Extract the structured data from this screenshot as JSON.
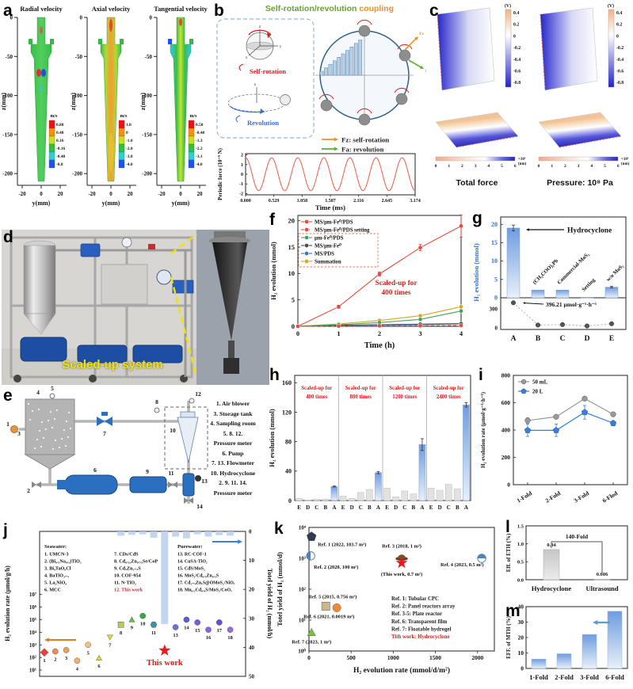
{
  "panel_labels": {
    "a": "a",
    "b": "b",
    "c": "c",
    "d": "d",
    "e": "e",
    "f": "f",
    "g": "g",
    "h": "h",
    "i": "i",
    "j": "j",
    "k": "k",
    "l": "l",
    "m": "m"
  },
  "panel_b": {
    "title_parts": [
      {
        "text": "Self-rotation/revolution ",
        "color": "#6aa02e"
      },
      {
        "text": "coupling",
        "color": "#e8951e"
      }
    ],
    "self_rotation_label": "Self-rotation",
    "revolution_label": "Revolution",
    "fz_label": "Fz: self-rotation",
    "fa_label": "Fa: revolution",
    "fz_color": "#f09020",
    "fa_color": "#56b32a"
  },
  "panel_c": {
    "cb_unit": "(V)",
    "cb_ticks": [
      "0.4",
      "0.2",
      "0",
      "-0.2",
      "-0.4",
      "-0.6",
      "-0.8"
    ],
    "scale_ticks": [
      "0",
      "1",
      "2",
      "3",
      "4",
      "5",
      "6"
    ],
    "scale_unit": "×10³",
    "scale_unit2": "(nm)",
    "captions": [
      "Total force",
      "Pressure: 10⁸ Pa"
    ]
  },
  "panel_d": {
    "caption": "Scaled-up system"
  },
  "panel_e": {
    "legend": [
      "1. Air blower",
      "3. Storage tank",
      "4. Sampling room",
      "5. 8. 12.",
      "Pressure meter",
      "6. Pump",
      "7. 13. Flowmeter",
      "10. Hydrocyclone",
      "2. 9. 11. 14.",
      "Pressure meter"
    ],
    "numbers": [
      "1",
      "2",
      "3",
      "4",
      "5",
      "6",
      "7",
      "8",
      "9",
      "10",
      "11",
      "12",
      "13",
      "14"
    ]
  },
  "chart_data": [
    {
      "panel": "a",
      "type": "heatmap",
      "xlabel": "y(mm)",
      "ylabel": "z(mm)",
      "xticks": [
        "-20",
        "0",
        "20"
      ],
      "yticks": [
        "0",
        "-50",
        "-100",
        "-150",
        "-200"
      ],
      "cb_colors": [
        "#f01010",
        "#f89010",
        "#c8e020",
        "#30c040",
        "#30d0d0",
        "#2050f0"
      ],
      "subplots": [
        {
          "title": "Radial velocity",
          "colorbar_unit": "m/s",
          "colorbar_ticks": [
            "0.80",
            "0.48",
            "0.16",
            "-0.16",
            "-0.48",
            "-0.8"
          ]
        },
        {
          "title": "Axial velocity",
          "colorbar_unit": "m/s",
          "colorbar_ticks": [
            "1.0",
            "0",
            "-1.0",
            "-2.0",
            "-3.0",
            "-4.0"
          ]
        },
        {
          "title": "Tangential velocity",
          "colorbar_unit": "m/s",
          "colorbar_ticks": [
            "0.50",
            "-0.40",
            "-1.3",
            "-2.2",
            "-3.1",
            "-4.0"
          ]
        }
      ]
    },
    {
      "panel": "b",
      "type": "line",
      "xlabel": "Time (ms)",
      "ylabel": "Periodic force (10⁻⁹ N)",
      "xticks": [
        "0.000",
        "0.529",
        "1.058",
        "1.587",
        "2.116",
        "2.645",
        "3.174"
      ],
      "yticks": [
        -2,
        -1,
        0,
        1,
        2
      ],
      "x_range": [
        0,
        3.174
      ],
      "amplitude": 1.7,
      "period_ms": 0.4883,
      "color": "#f05a4a"
    },
    {
      "panel": "f",
      "type": "line",
      "xlabel": "Time (h)",
      "ylabel": "H₂ evolution (mmol)",
      "x": [
        0,
        1,
        2,
        3,
        4
      ],
      "ylim": [
        0,
        21
      ],
      "yticks": [
        0,
        5,
        10,
        15,
        20
      ],
      "annotation": {
        "text_lines": [
          "Scaled-up for",
          "400 times"
        ],
        "color": "#e8191c"
      },
      "series": [
        {
          "name": "MS/μm-Fe⁰/PDS",
          "color": "#e84a3c",
          "dash": false,
          "values": [
            0,
            3.7,
            9.9,
            14.9,
            19.0
          ],
          "errors": [
            0,
            0.3,
            0.4,
            0.6,
            2.1
          ]
        },
        {
          "name": "MS/μm-Fe⁰/PDS setting",
          "color": "#e84a3c",
          "dash": true,
          "values": [
            0,
            0.05,
            0.1,
            0.1,
            0.15
          ]
        },
        {
          "name": "μm-Fe⁰/PDS",
          "color": "#44a05c",
          "dash": false,
          "values": [
            0,
            0.3,
            0.7,
            1.3,
            2.9
          ]
        },
        {
          "name": "MS/μm-Fe⁰",
          "color": "#4d4d4d",
          "dash": false,
          "values": [
            0,
            0.2,
            0.3,
            0.4,
            0.5
          ]
        },
        {
          "name": "MS/PDS",
          "color": "#3b74c9",
          "dash": false,
          "values": [
            0,
            0.15,
            0.25,
            0.3,
            0.45
          ]
        },
        {
          "name": "Summation",
          "color": "#d9a520",
          "dash": false,
          "values": [
            0,
            0.45,
            1.1,
            2.0,
            3.7
          ]
        }
      ]
    },
    {
      "panel": "g",
      "type": "bar+scatter",
      "ylabel": "H₂ evolution (mmol)",
      "ylabel_color": "#2f6fd0",
      "categories": [
        "A",
        "B",
        "C",
        "D",
        "E"
      ],
      "bar_values": [
        19,
        2.1,
        2.1,
        0.15,
        2.9
      ],
      "bar_errors": [
        0.8,
        0,
        0,
        0,
        0.2
      ],
      "yticks": [
        0,
        5,
        10,
        15,
        20
      ],
      "bar_labels": [
        "Hydrocyclone",
        "(CH₃COO)₂Pb",
        "Commercial-MoS₂",
        "Setting",
        "w/o MoS₂"
      ],
      "dot_values": [
        396.21,
        45,
        52,
        30,
        65
      ],
      "dot_yticks": [
        "300",
        "0"
      ],
      "dot_annotation": "396.21 μmol·g⁻¹·h⁻¹"
    },
    {
      "panel": "h",
      "type": "bar",
      "ylabel": "H₂ evolution (mmol)",
      "yticks": [
        0,
        40,
        80,
        120,
        160
      ],
      "ylim": [
        0,
        170
      ],
      "categories": [
        "E",
        "D",
        "C",
        "B",
        "A"
      ],
      "groups": [
        {
          "label_lines": [
            "Scaled-up for",
            "400 times"
          ],
          "values": [
            3,
            0.8,
            2,
            2,
            19
          ]
        },
        {
          "label_lines": [
            "Scaled-up for",
            "800 times"
          ],
          "values": [
            6,
            3,
            11,
            15,
            38
          ]
        },
        {
          "label_lines": [
            "Scaled-up for",
            "1200 times"
          ],
          "values": [
            17,
            5,
            13,
            9,
            76
          ]
        },
        {
          "label_lines": [
            "Scaled-up for",
            "2400 times"
          ],
          "values": [
            17,
            14,
            22,
            16,
            130
          ]
        }
      ],
      "a_errors": [
        0.7,
        1.5,
        8,
        3
      ],
      "annotation_color": "#e8191c"
    },
    {
      "panel": "i",
      "type": "line",
      "ylabel": "H₂ evolution rate (μmol·g⁻¹·h⁻¹)",
      "categories": [
        "1-Fold",
        "2-Fold",
        "3-Fold",
        "6-Flod"
      ],
      "ylim": [
        0,
        800
      ],
      "yticks": [
        0,
        200,
        400,
        600,
        800
      ],
      "series": [
        {
          "name": "50 mL",
          "color": "#999999",
          "marker": "circle",
          "values": [
            470,
            497,
            630,
            515
          ],
          "errors": [
            20,
            12,
            12,
            10
          ]
        },
        {
          "name": "20 L",
          "color": "#2f7fe8",
          "marker": "pentagon",
          "values": [
            398,
            398,
            530,
            450
          ],
          "errors": [
            45,
            45,
            50,
            18
          ]
        }
      ]
    },
    {
      "panel": "j",
      "type": "scatter+bar",
      "left_ylabel": "H₂ evolution rate (μmol/g/h)",
      "right_ylabel": "Totel yield of H₂ (mmol/h)",
      "left_ticks": [
        "10¹",
        "10²",
        "10³",
        "10⁴",
        "10⁵",
        "10⁶",
        "10⁷"
      ],
      "right_ticks": [
        0,
        10,
        20,
        30,
        40,
        50
      ],
      "legend_seawater_title": "Seawater:",
      "legend_seawater": [
        "1. UMCN-3",
        "2. (Bi₀.₅Na₀.₅)TiO₃",
        "3. Bi₄TaO₈Cl",
        "4. BaTiO₃₋ₓ",
        "5. La₂NiO₄",
        "6. MCC"
      ],
      "legend_mid": [
        "7. CDs/CdS",
        "8. Cd₀.₂₅Zn₀.₇₅Se/CoP",
        "9. CdₓZn₁₋ₓS",
        "10. COF-954",
        "11. N-TiO₂",
        "12. This work"
      ],
      "legend_purewater_title": "Purewater:",
      "legend_purewater": [
        "13. RC-COF-1",
        "14. CuSA-TiO₂",
        "15. CdS/MoS₂",
        "16. MoS₂/Cd₀.₅Zn₀.₅S",
        "17. Cd₁₋ₓZnₓS@OMoS₂/NiOₓ",
        "18. Mn₀.₂Cd₀.₈S/MoS₂/CoOₓ"
      ],
      "this_work_label": "This work",
      "points": [
        {
          "n": "1",
          "exp": 2.4,
          "shape": "diamond",
          "color": "#e8413c"
        },
        {
          "n": "2",
          "exp": 2.48,
          "shape": "circle",
          "color": "#ef8a5a"
        },
        {
          "n": "3",
          "exp": 2.58,
          "shape": "circle",
          "color": "#f0a04a"
        },
        {
          "n": "4",
          "exp": 1.74,
          "shape": "circle",
          "color": "#f4b06a"
        },
        {
          "n": "5",
          "exp": 3.0,
          "shape": "circle",
          "color": "#f6c080"
        },
        {
          "n": "6",
          "exp": 1.95,
          "shape": "triangle",
          "color": "#f0cf2a"
        },
        {
          "n": "7",
          "exp": 3.6,
          "shape": "tri-down",
          "color": "#e0d83a"
        },
        {
          "n": "8",
          "exp": 4.6,
          "shape": "square",
          "color": "#b8cc4e"
        },
        {
          "n": "9",
          "exp": 5.0,
          "shape": "triangle",
          "color": "#62bb4a"
        },
        {
          "n": "10",
          "exp": 5.3,
          "shape": "circle",
          "color": "#34a846"
        },
        {
          "n": "11",
          "exp": 4.6,
          "shape": "hexagon",
          "color": "#3a93a8"
        },
        {
          "n": "12",
          "exp": 2.55,
          "shape": "star",
          "color": "#e8191c"
        },
        {
          "n": "13",
          "exp": 4.4,
          "shape": "circle",
          "color": "#6a74d8"
        },
        {
          "n": "14",
          "exp": 5.0,
          "shape": "circle",
          "color": "#5560d6"
        },
        {
          "n": "15",
          "exp": 4.78,
          "shape": "circle",
          "color": "#7a5cd8"
        },
        {
          "n": "16",
          "exp": 4.2,
          "shape": "circle",
          "color": "#8a64d8"
        },
        {
          "n": "17",
          "exp": 4.78,
          "shape": "circle",
          "color": "#6a4cd0"
        },
        {
          "n": "18",
          "exp": 4.2,
          "shape": "circle",
          "color": "#9a6cd8"
        }
      ],
      "bars": [
        [
          8,
          1.5
        ],
        [
          9,
          1.2
        ],
        [
          10,
          1.0
        ],
        [
          11,
          2.2
        ],
        [
          12,
          32
        ],
        [
          13,
          1.8
        ],
        [
          14,
          2.4
        ],
        [
          15,
          1.0
        ],
        [
          16,
          1.8
        ],
        [
          17,
          1.3
        ],
        [
          18,
          1.5
        ]
      ],
      "bar_color": "#bcd2ee"
    },
    {
      "panel": "k",
      "type": "scatter",
      "xlabel": "H₂ evolution rate (mmol/d/m²)",
      "ylabel": "Totel yield of H₂ (mmol/d)",
      "xticks": [
        0,
        500,
        1000,
        1500,
        2000
      ],
      "ytick_labels": [
        "10⁰",
        "10¹",
        "10²",
        "10³",
        "10⁴"
      ],
      "points": [
        {
          "label": "Ref. 1 (2022, 103.7 m²)",
          "x": 30,
          "exp": 3.7,
          "shape": "pentagon",
          "color": "#2e3b52"
        },
        {
          "label": "Ref. 2 (2020, 100 m²)",
          "x": 20,
          "exp": 3.08,
          "shape": "half-left",
          "color": "#4f81bd"
        },
        {
          "label": "Ref. 3 (2018, 1 m²)",
          "x": 1100,
          "exp": 3.04,
          "shape": "hat",
          "color": "#7a4f2e"
        },
        {
          "label": "(This work, 0.7 m²)",
          "x": 1100,
          "exp": 2.85,
          "shape": "star",
          "color": "#e8191c"
        },
        {
          "label": "Ref. 4 (2023, 0.5 m²)",
          "x": 2050,
          "exp": 3.0,
          "shape": "half-top",
          "color": "#4f81bd"
        },
        {
          "label": "Ref. 5 (2015, 0.756 m²)",
          "x": 200,
          "exp": 1.45,
          "shape": "square",
          "color": "#cdb68a"
        },
        {
          "label": "Ref. 6 (2021, 0.0019 m²)",
          "x": 330,
          "exp": 1.4,
          "shape": "circle",
          "color": "#ed8a33"
        },
        {
          "label": "Ref. 7 (2023, 1 m²)",
          "x": 30,
          "exp": 0.6,
          "shape": "triangle",
          "color": "#7ac143"
        }
      ],
      "legend": [
        {
          "text": "Ref. 1: Tubular CPC",
          "color": "#222222"
        },
        {
          "text": "Ref. 2: Panel reactors array",
          "color": "#222222"
        },
        {
          "text": "Ref. 3-5: Plate reactor",
          "color": "#222222"
        },
        {
          "text": "Ref. 6: Transparent film",
          "color": "#222222"
        },
        {
          "text": "Ref. 7: Floatable hydrogel",
          "color": "#222222"
        },
        {
          "text": "Tith work: Hydrocyclone",
          "color": "#e8191c"
        }
      ]
    },
    {
      "panel": "l",
      "type": "bar",
      "ylabel": "Eff. of ETH (%)",
      "categories": [
        "Hydrocyclone",
        "Ultrasound"
      ],
      "values": [
        0.84,
        0.006
      ],
      "value_labels": [
        "0.84",
        "0.006"
      ],
      "bracket_label": "140-Fold",
      "yticks": [
        "0.0",
        "0.5",
        "1.0",
        "1.5"
      ],
      "ylim": [
        0,
        1.5
      ]
    },
    {
      "panel": "m",
      "type": "bar",
      "ylabel": "EFF. of MTH (%)",
      "categories": [
        "1-Fold",
        "2-Fold",
        "3-Fold",
        "6-Fold"
      ],
      "values": [
        6,
        9.5,
        22,
        37
      ],
      "yticks": [
        0,
        10,
        20,
        30,
        40
      ],
      "ylim": [
        0,
        40
      ]
    }
  ]
}
